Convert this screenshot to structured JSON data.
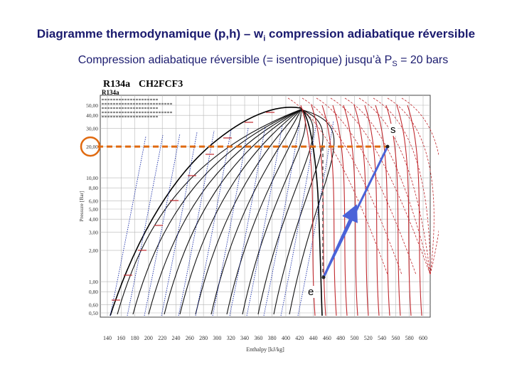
{
  "header": {
    "title_main": "Diagramme thermodynamique (p,h) – w",
    "title_sub": "i",
    "title_rest": " compression adiabatique réversible",
    "subtitle_main": "Compression adiabatique réversible (= isentropique) jusqu’à P",
    "subtitle_sub": "S",
    "subtitle_rest": " = 20 bars"
  },
  "chart": {
    "heading_refrigerant": "R134a",
    "heading_formula": "CH2FCF3",
    "inset_title": "R134a",
    "ylabel": "Pressure [Bar]",
    "xlabel": "Enthalpy [kJ/kg]",
    "y_ticks": [
      "50,00",
      "40,00",
      "30,00",
      "20,00",
      "10,00",
      "8,00",
      "6,00",
      "5,00",
      "4,00",
      "3,00",
      "2,00",
      "1,00",
      "0,80",
      "0,60",
      "0,50"
    ],
    "x_ticks": [
      "140",
      "160",
      "180",
      "200",
      "220",
      "240",
      "260",
      "280",
      "300",
      "320",
      "340",
      "360",
      "380",
      "400",
      "420",
      "440",
      "460",
      "480",
      "500",
      "520",
      "540",
      "560",
      "580",
      "600"
    ],
    "highlight_pressure": "20,00",
    "point_e": "e",
    "point_s": "s",
    "colors": {
      "grid": "#b7b7b7",
      "isotherm_red": "#c0282d",
      "isentrope_blue": "#1b2fa8",
      "dome": "#000000",
      "dashed_orange": "#e06a10",
      "compression_arrow": "#4a63d8"
    }
  }
}
